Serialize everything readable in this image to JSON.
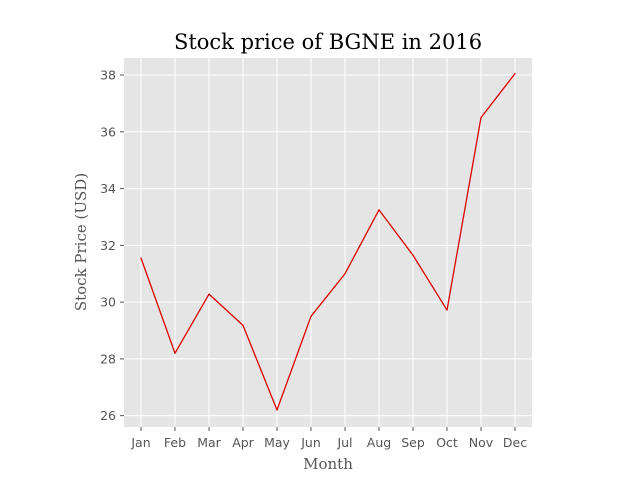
{
  "chart_data": {
    "type": "line",
    "title": "Stock price of BGNE in 2016",
    "xlabel": "Month",
    "ylabel": "Stock Price (USD)",
    "categories": [
      "Jan",
      "Feb",
      "Mar",
      "Apr",
      "May",
      "Jun",
      "Jul",
      "Aug",
      "Sep",
      "Oct",
      "Nov",
      "Dec"
    ],
    "series": [
      {
        "values": [
          31.55,
          28.2,
          30.28,
          29.18,
          26.2,
          29.5,
          31.0,
          33.25,
          31.65,
          29.72,
          36.5,
          38.05
        ],
        "color": "#dd0000"
      }
    ],
    "yticks": [
      26,
      28,
      30,
      32,
      34,
      36,
      38
    ],
    "ylim": [
      25.6,
      38.6
    ],
    "grid": true,
    "background": "#e5e5e5",
    "grid_color": "#ffffff"
  }
}
